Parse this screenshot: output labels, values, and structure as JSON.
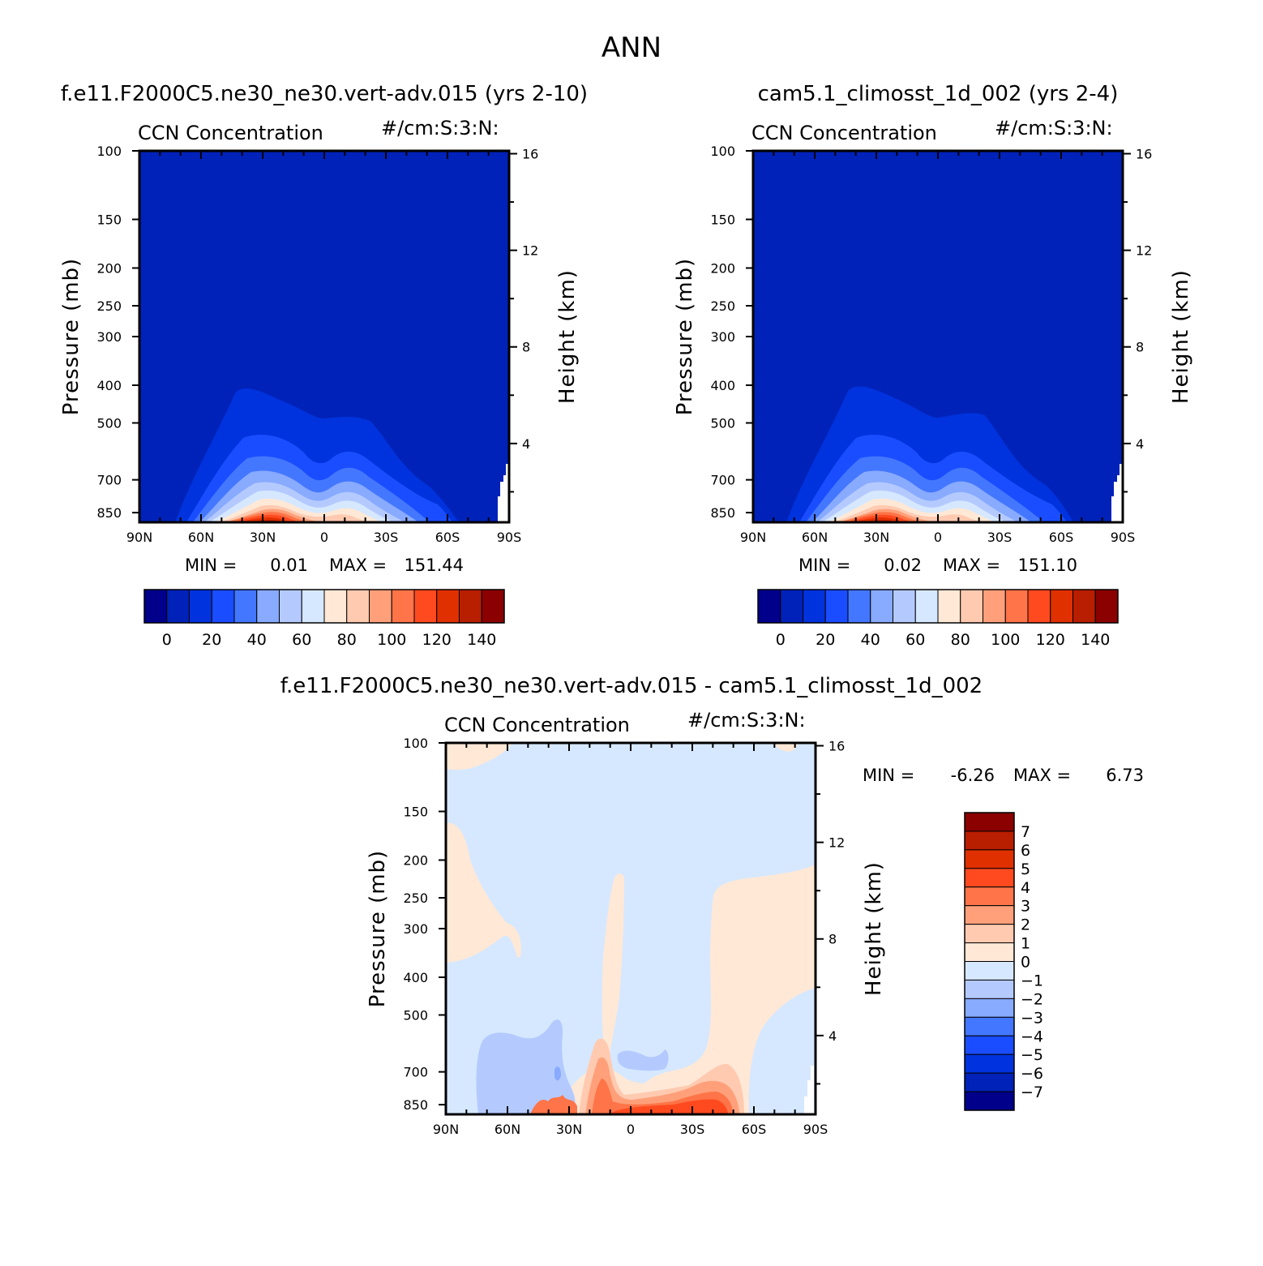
{
  "figure": {
    "title": "ANN"
  },
  "chart_data": [
    {
      "type": "heatmap",
      "panel": "model",
      "title": "f.e11.F2000C5.ne30_ne30.vert-adv.015 (yrs 2-10)",
      "variable": "CCN Concentration",
      "units": "#/cm:S:3:N:",
      "ylabel": "Pressure (mb)",
      "y2label": "Height (km)",
      "x_ticks": [
        "90N",
        "60N",
        "30N",
        "0",
        "30S",
        "60S",
        "90S"
      ],
      "y_ticks": [
        "100",
        "150",
        "200",
        "250",
        "300",
        "400",
        "500",
        "700",
        "850"
      ],
      "y2_ticks": [
        "16",
        "12",
        "8",
        "4"
      ],
      "min_label": "MIN =",
      "min_value": "0.01",
      "max_label": "MAX =",
      "max_value": "151.44",
      "colorbar_labels": [
        "0",
        "20",
        "40",
        "60",
        "80",
        "100",
        "120",
        "140"
      ],
      "colorbar_orientation": "horizontal",
      "ylim": [
        100,
        900
      ]
    },
    {
      "type": "heatmap",
      "panel": "control",
      "title": "cam5.1_climosst_1d_002 (yrs 2-4)",
      "variable": "CCN Concentration",
      "units": "#/cm:S:3:N:",
      "ylabel": "Pressure (mb)",
      "y2label": "Height (km)",
      "x_ticks": [
        "90N",
        "60N",
        "30N",
        "0",
        "30S",
        "60S",
        "90S"
      ],
      "y_ticks": [
        "100",
        "150",
        "200",
        "250",
        "300",
        "400",
        "500",
        "700",
        "850"
      ],
      "y2_ticks": [
        "16",
        "12",
        "8",
        "4"
      ],
      "min_label": "MIN =",
      "min_value": "0.02",
      "max_label": "MAX =",
      "max_value": "151.10",
      "colorbar_labels": [
        "0",
        "20",
        "40",
        "60",
        "80",
        "100",
        "120",
        "140"
      ],
      "colorbar_orientation": "horizontal",
      "ylim": [
        100,
        900
      ]
    },
    {
      "type": "heatmap",
      "panel": "difference",
      "title": "f.e11.F2000C5.ne30_ne30.vert-adv.015 - cam5.1_climosst_1d_002",
      "variable": "CCN Concentration",
      "units": "#/cm:S:3:N:",
      "ylabel": "Pressure (mb)",
      "y2label": "Height (km)",
      "x_ticks": [
        "90N",
        "60N",
        "30N",
        "0",
        "30S",
        "60S",
        "90S"
      ],
      "y_ticks": [
        "100",
        "150",
        "200",
        "250",
        "300",
        "400",
        "500",
        "700",
        "850"
      ],
      "y2_ticks": [
        "16",
        "12",
        "8",
        "4"
      ],
      "min_label": "MIN =",
      "min_value": "-6.26",
      "max_label": "MAX =",
      "max_value": "6.73",
      "colorbar_labels": [
        "7",
        "6",
        "5",
        "4",
        "3",
        "2",
        "1",
        "0",
        "-1",
        "-2",
        "-3",
        "-4",
        "-5",
        "-6",
        "-7"
      ],
      "colorbar_orientation": "vertical",
      "ylim": [
        100,
        900
      ]
    }
  ],
  "colors": {
    "absolute_scale": [
      "#00008a",
      "#0022b8",
      "#0033dd",
      "#1a4dff",
      "#4477ff",
      "#88aaff",
      "#b4caff",
      "#d6e8ff",
      "#ffe8d6",
      "#ffcab0",
      "#ffa07a",
      "#ff7448",
      "#ff4a1f",
      "#e03000",
      "#b81e00",
      "#8b0000"
    ],
    "difference_scale": [
      "#8b0000",
      "#b81e00",
      "#e03000",
      "#ff4a1f",
      "#ff7448",
      "#ffa07a",
      "#ffcab0",
      "#ffe8d6",
      "#d6e8ff",
      "#b4caff",
      "#88aaff",
      "#4477ff",
      "#1a4dff",
      "#0033dd",
      "#0022b8",
      "#00008a"
    ],
    "background_blue": "#0022b8",
    "diff_background": "#d6e8ff"
  }
}
